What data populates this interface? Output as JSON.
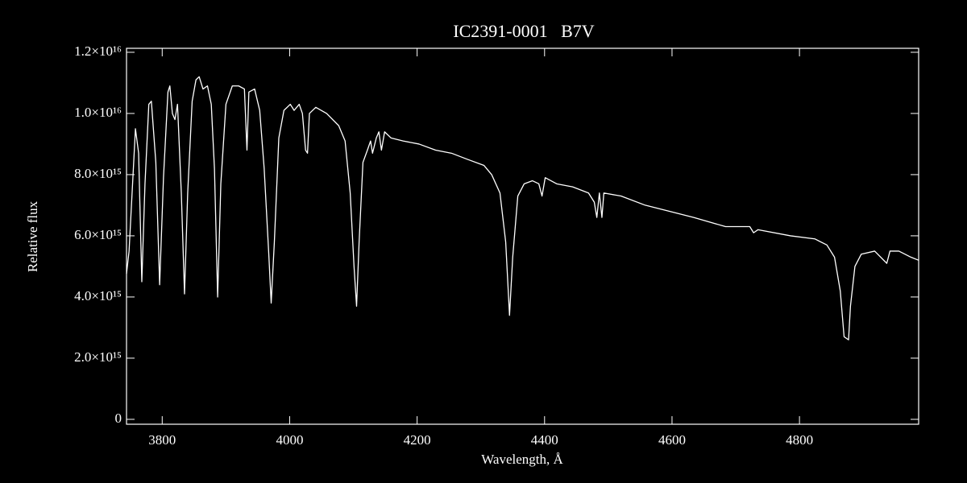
{
  "chart_data": {
    "type": "line",
    "title": "IC2391-0001   B7V",
    "xlabel": "Wavelength, Å",
    "ylabel": "Relative flux",
    "xlim": [
      3744,
      4987
    ],
    "ylim": [
      -160000000000000.0,
      1.213e+16
    ],
    "xticks": [
      3800,
      4000,
      4200,
      4400,
      4600,
      4800
    ],
    "yticks": [
      0,
      {
        "value": 2000000000000000.0,
        "label": "2.0×10¹⁵"
      },
      {
        "value": 4000000000000000.0,
        "label": "4.0×10¹⁵"
      },
      {
        "value": 6000000000000000.0,
        "label": "6.0×10¹⁵"
      },
      {
        "value": 8000000000000000.0,
        "label": "8.0×10¹⁵"
      },
      {
        "value": 1e+16,
        "label": "1.0×10¹⁶"
      },
      {
        "value": 1.2e+16,
        "label": "1.2×10¹⁶"
      }
    ],
    "color": "#ffffff",
    "x": [
      3744,
      3748,
      3752,
      3758,
      3763,
      3768,
      3773,
      3779,
      3783,
      3790,
      3796,
      3802,
      3809,
      3812,
      3816,
      3820,
      3824,
      3830,
      3835,
      3840,
      3847,
      3853,
      3858,
      3864,
      3871,
      3877,
      3882,
      3887,
      3892,
      3900,
      3910,
      3920,
      3929,
      3933,
      3936,
      3945,
      3953,
      3960,
      3967,
      3971,
      3976,
      3983,
      3991,
      4001,
      4007,
      4015,
      4020,
      4025,
      4028,
      4031,
      4041,
      4058,
      4077,
      4087,
      4095,
      4101,
      4105,
      4109,
      4115,
      4122,
      4127,
      4130,
      4136,
      4140,
      4144,
      4149,
      4159,
      4178,
      4203,
      4229,
      4254,
      4279,
      4305,
      4317,
      4330,
      4339,
      4345,
      4350,
      4358,
      4368,
      4381,
      4391,
      4396,
      4401,
      4419,
      4444,
      4469,
      4478,
      4482,
      4486,
      4490,
      4493,
      4520,
      4558,
      4596,
      4634,
      4684,
      4722,
      4728,
      4735,
      4786,
      4824,
      4843,
      4855,
      4864,
      4870,
      4877,
      4880,
      4887,
      4897,
      4918,
      4937,
      4942,
      4956,
      4975,
      4987
    ],
    "values": [
      4760000000000000.0,
      5500000000000000.0,
      7100000000000000.0,
      9500000000000000.0,
      8700000000000000.0,
      4500000000000000.0,
      7700000000000000.0,
      1.03e+16,
      1.04e+16,
      8400000000000000.0,
      4400000000000000.0,
      7900000000000000.0,
      1.07e+16,
      1.09e+16,
      1e+16,
      9800000000000000.0,
      1.03e+16,
      7400000000000000.0,
      4100000000000000.0,
      7400000000000000.0,
      1.04e+16,
      1.11e+16,
      1.12e+16,
      1.08e+16,
      1.09e+16,
      1.03e+16,
      8200000000000000.0,
      4000000000000000.0,
      7700000000000000.0,
      1.03e+16,
      1.09e+16,
      1.09e+16,
      1.08e+16,
      8800000000000000.0,
      1.07e+16,
      1.08e+16,
      1.01e+16,
      8200000000000000.0,
      5500000000000000.0,
      3800000000000000.0,
      5800000000000000.0,
      9200000000000000.0,
      1.01e+16,
      1.03e+16,
      1.01e+16,
      1.03e+16,
      1e+16,
      8800000000000000.0,
      8700000000000000.0,
      1e+16,
      1.02e+16,
      1e+16,
      9600000000000000.0,
      9100000000000000.0,
      7400000000000000.0,
      5000000000000000.0,
      3700000000000000.0,
      5800000000000000.0,
      8400000000000000.0,
      8800000000000000.0,
      9100000000000000.0,
      8700000000000000.0,
      9200000000000000.0,
      9400000000000000.0,
      8800000000000000.0,
      9400000000000000.0,
      9200000000000000.0,
      9100000000000000.0,
      9000000000000000.0,
      8800000000000000.0,
      8700000000000000.0,
      8500000000000000.0,
      8300000000000000.0,
      8000000000000000.0,
      7400000000000000.0,
      5800000000000000.0,
      3400000000000000.0,
      5300000000000000.0,
      7300000000000000.0,
      7700000000000000.0,
      7800000000000000.0,
      7700000000000000.0,
      7300000000000000.0,
      7900000000000000.0,
      7700000000000000.0,
      7600000000000000.0,
      7400000000000000.0,
      7100000000000000.0,
      6600000000000000.0,
      7400000000000000.0,
      6600000000000000.0,
      7400000000000000.0,
      7300000000000000.0,
      7000000000000000.0,
      6800000000000000.0,
      6600000000000000.0,
      6300000000000000.0,
      6300000000000000.0,
      6100000000000000.0,
      6200000000000000.0,
      6000000000000000.0,
      5900000000000000.0,
      5700000000000000.0,
      5300000000000000.0,
      4200000000000000.0,
      2700000000000000.0,
      2600000000000000.0,
      3700000000000000.0,
      5000000000000000.0,
      5400000000000000.0,
      5500000000000000.0,
      5100000000000000.0,
      5500000000000000.0,
      5500000000000000.0,
      5300000000000000.0,
      5200000000000000.0
    ]
  }
}
